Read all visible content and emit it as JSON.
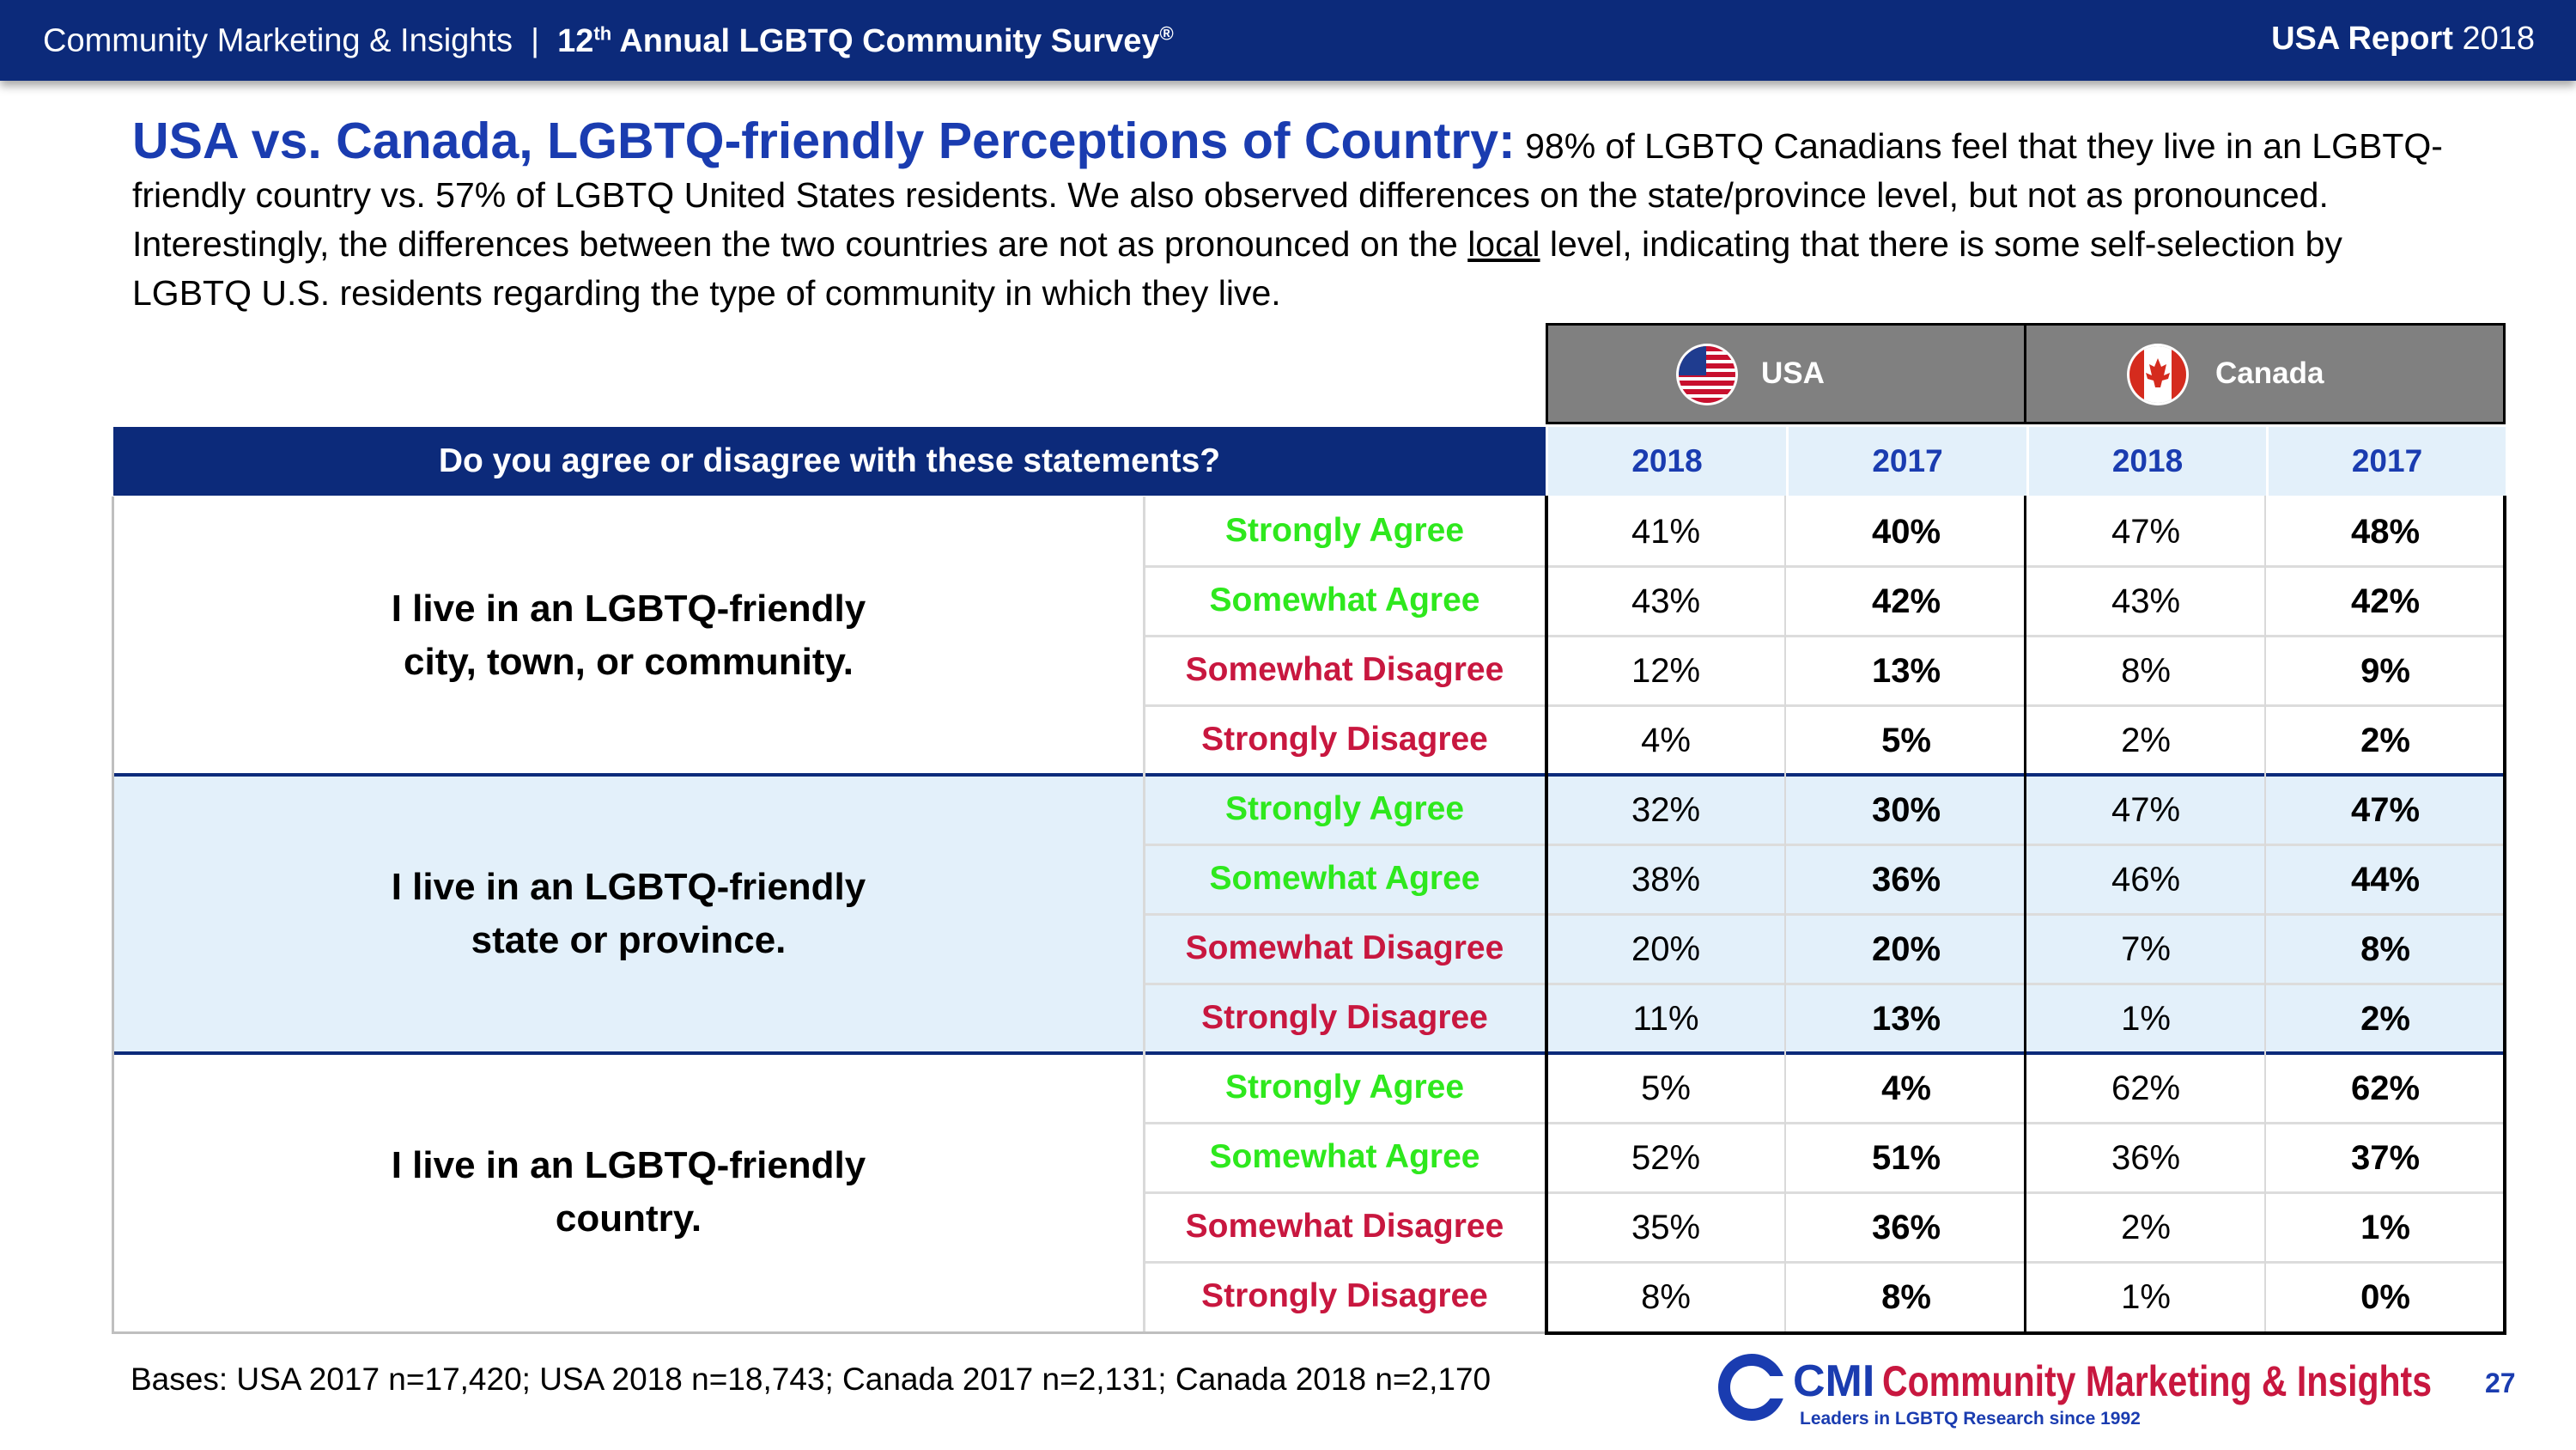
{
  "header": {
    "org": "Community Marketing & Insights",
    "separator": "|",
    "survey_ordinal": "12",
    "survey_ordinal_suffix": "th",
    "survey_name": "Annual LGBTQ Community Survey",
    "survey_mark": "®",
    "report_label": "USA Report",
    "report_year": "2018"
  },
  "intro": {
    "headline": "USA vs. Canada, LGBTQ-friendly Perceptions of Country:",
    "text_a": "98% of LGBTQ Canadians feel that they live in an LGBTQ-friendly country vs. 57% of LGBTQ United States residents. We also observed differences on the state/province level, but not as pronounced. Interestingly, the differences between the two countries are not as pronounced on the ",
    "underlined": "local",
    "text_b": " level, indicating that there is some self-selection by LGBTQ U.S. residents regarding the type of community in which they live."
  },
  "table": {
    "question_header": "Do you agree or disagree with these statements?",
    "countries": [
      {
        "name": "USA",
        "flag": "usa-flag-icon"
      },
      {
        "name": "Canada",
        "flag": "canada-flag-icon"
      }
    ],
    "years": [
      "2018",
      "2017",
      "2018",
      "2017"
    ],
    "responses": [
      {
        "label": "Strongly Agree",
        "tone": "agree"
      },
      {
        "label": "Somewhat Agree",
        "tone": "agree"
      },
      {
        "label": "Somewhat Disagree",
        "tone": "disagree"
      },
      {
        "label": "Strongly Disagree",
        "tone": "disagree"
      }
    ],
    "statements": [
      {
        "line1": "I live in an LGBTQ-friendly",
        "line2": "city, town, or community.",
        "rows": [
          [
            "41%",
            "40%",
            "47%",
            "48%"
          ],
          [
            "43%",
            "42%",
            "43%",
            "42%"
          ],
          [
            "12%",
            "13%",
            "8%",
            "9%"
          ],
          [
            "4%",
            "5%",
            "2%",
            "2%"
          ]
        ]
      },
      {
        "line1": "I live in an LGBTQ-friendly",
        "line2": "state or province.",
        "rows": [
          [
            "32%",
            "30%",
            "47%",
            "47%"
          ],
          [
            "38%",
            "36%",
            "46%",
            "44%"
          ],
          [
            "20%",
            "20%",
            "7%",
            "8%"
          ],
          [
            "11%",
            "13%",
            "1%",
            "2%"
          ]
        ]
      },
      {
        "line1": "I live in an LGBTQ-friendly",
        "line2": "country.",
        "rows": [
          [
            "5%",
            "4%",
            "62%",
            "62%"
          ],
          [
            "52%",
            "51%",
            "36%",
            "37%"
          ],
          [
            "35%",
            "36%",
            "2%",
            "1%"
          ],
          [
            "8%",
            "8%",
            "1%",
            "0%"
          ]
        ]
      }
    ]
  },
  "footer": {
    "bases": "Bases: USA 2017 n=17,420; USA 2018 n=18,743; Canada 2017 n=2,131; Canada 2018 n=2,170",
    "logo_mark": "CMI",
    "logo_name": "Community Marketing & Insights",
    "logo_tagline": "Leaders in LGBTQ Research since 1992",
    "page_number": "27"
  },
  "colors": {
    "navy": "#0c2a7a",
    "title_blue": "#1a3cb0",
    "agree_green": "#2ee81d",
    "disagree_red": "#c8173f",
    "band_blue": "#e3f0fa"
  }
}
